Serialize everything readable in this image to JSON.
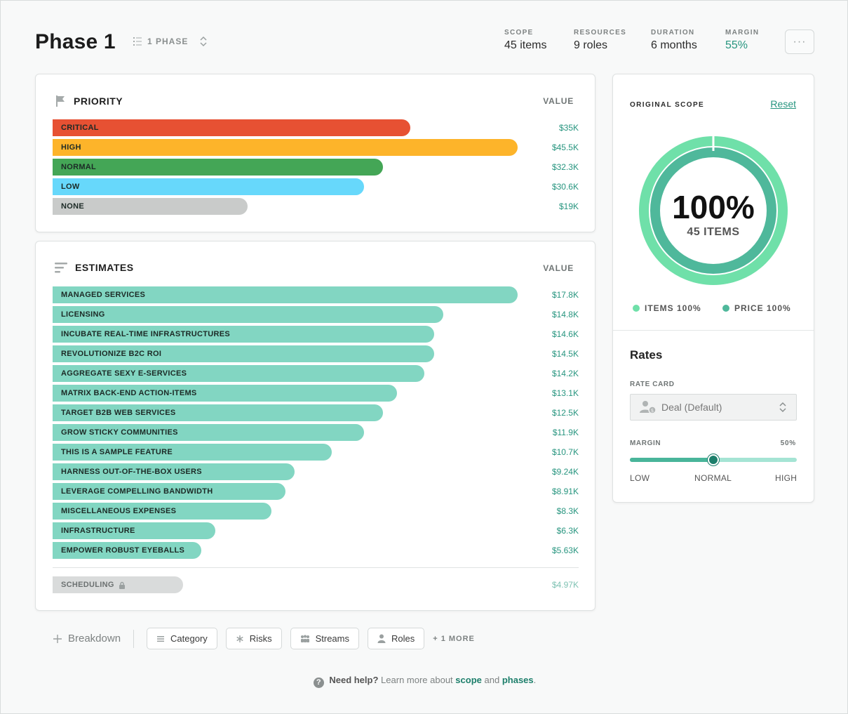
{
  "header": {
    "title": "Phase 1",
    "phase_selector": "1 PHASE",
    "stats": [
      {
        "label": "SCOPE",
        "value": "45 items"
      },
      {
        "label": "RESOURCES",
        "value": "9 roles"
      },
      {
        "label": "DURATION",
        "value": "6 months"
      },
      {
        "label": "MARGIN",
        "value": "55%"
      }
    ],
    "more_icon": "···"
  },
  "priority": {
    "title": "PRIORITY",
    "value_header": "VALUE",
    "rows": [
      {
        "label": "CRITICAL",
        "value": "$35K",
        "fraction": 0.68,
        "color": "#e75133"
      },
      {
        "label": "HIGH",
        "value": "$45.5K",
        "fraction": 0.884,
        "color": "#fdb42a"
      },
      {
        "label": "NORMAL",
        "value": "$32.3K",
        "fraction": 0.628,
        "color": "#44a656"
      },
      {
        "label": "LOW",
        "value": "$30.6K",
        "fraction": 0.592,
        "color": "#67d8fb"
      },
      {
        "label": "NONE",
        "value": "$19K",
        "fraction": 0.371,
        "color": "#c9cbca"
      }
    ]
  },
  "estimates": {
    "title": "ESTIMATES",
    "value_header": "VALUE",
    "bar_color": "#82d6c2",
    "rows": [
      {
        "label": "MANAGED SERVICES",
        "value": "$17.8K",
        "fraction": 0.884
      },
      {
        "label": "LICENSING",
        "value": "$14.8K",
        "fraction": 0.743
      },
      {
        "label": "INCUBATE REAL-TIME INFRASTRUCTURES",
        "value": "$14.6K",
        "fraction": 0.725
      },
      {
        "label": "REVOLUTIONIZE B2C ROI",
        "value": "$14.5K",
        "fraction": 0.725
      },
      {
        "label": "AGGREGATE SEXY E-SERVICES",
        "value": "$14.2K",
        "fraction": 0.707
      },
      {
        "label": "MATRIX BACK-END ACTION-ITEMS",
        "value": "$13.1K",
        "fraction": 0.655
      },
      {
        "label": "TARGET B2B WEB SERVICES",
        "value": "$12.5K",
        "fraction": 0.628
      },
      {
        "label": "GROW STICKY COMMUNITIES",
        "value": "$11.9K",
        "fraction": 0.592
      },
      {
        "label": "THIS IS A SAMPLE FEATURE",
        "value": "$10.7K",
        "fraction": 0.531
      },
      {
        "label": "HARNESS OUT-OF-THE-BOX USERS",
        "value": "$9.24K",
        "fraction": 0.46
      },
      {
        "label": "LEVERAGE COMPELLING BANDWIDTH",
        "value": "$8.91K",
        "fraction": 0.443
      },
      {
        "label": "MISCELLANEOUS EXPENSES",
        "value": "$8.3K",
        "fraction": 0.416
      },
      {
        "label": "INFRASTRUCTURE",
        "value": "$6.3K",
        "fraction": 0.309
      },
      {
        "label": "EMPOWER ROBUST EYEBALLS",
        "value": "$5.63K",
        "fraction": 0.283
      }
    ],
    "scheduling": {
      "label": "SCHEDULING",
      "value": "$4.97K",
      "fraction": 0.248
    }
  },
  "original_scope": {
    "title": "ORIGINAL SCOPE",
    "reset_label": "Reset",
    "percent": "100%",
    "items_label": "45 ITEMS",
    "items_fraction": 1.0,
    "price_fraction": 1.0,
    "legend": [
      {
        "label": "ITEMS 100%",
        "color": "#6fe0a9"
      },
      {
        "label": "PRICE 100%",
        "color": "#4fb89b"
      }
    ]
  },
  "rates": {
    "title": "Rates",
    "rate_card_label": "RATE CARD",
    "rate_card_value": "Deal (Default)",
    "margin_label": "MARGIN",
    "margin_value": "50%",
    "margin_fraction": 0.5,
    "ticks": [
      "LOW",
      "NORMAL",
      "HIGH"
    ]
  },
  "toolbar": {
    "breakdown_label": "Breakdown",
    "chips": [
      {
        "label": "Category",
        "icon": "list-icon"
      },
      {
        "label": "Risks",
        "icon": "asterisk-icon"
      },
      {
        "label": "Streams",
        "icon": "streams-icon"
      },
      {
        "label": "Roles",
        "icon": "person-icon"
      }
    ],
    "more_label": "+ 1 MORE"
  },
  "help": {
    "prefix": "Need help?",
    "text": "Learn more about",
    "link1": "scope",
    "and": "and",
    "link2": "phases",
    "suffix": "."
  }
}
